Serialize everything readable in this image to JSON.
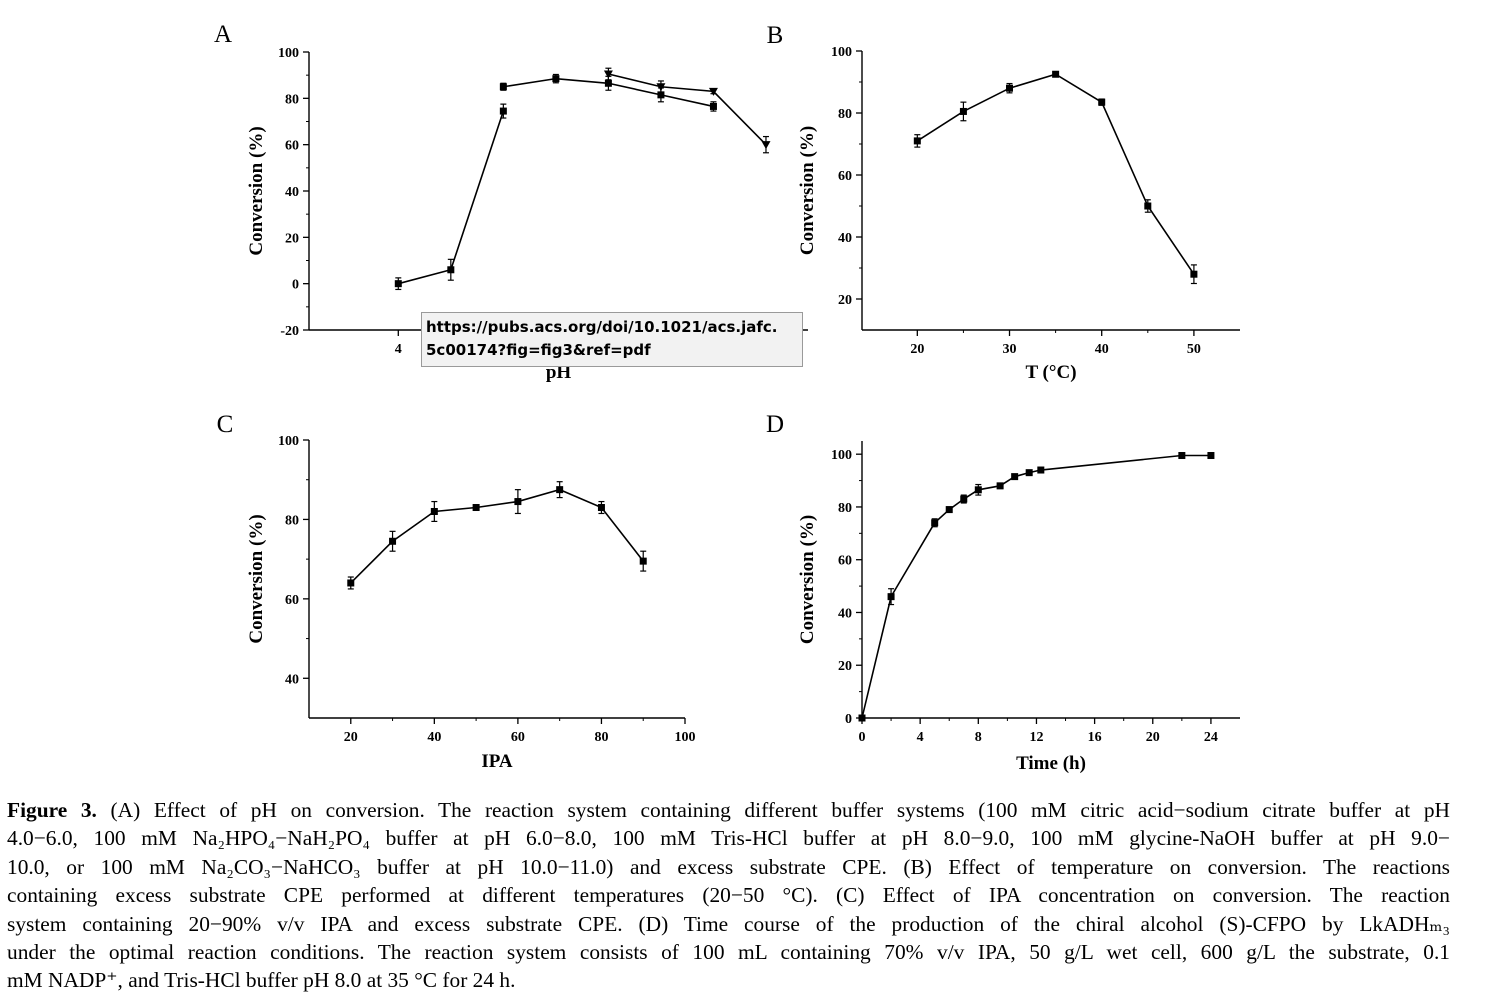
{
  "tooltip": {
    "line1": "https://pubs.acs.org/doi/10.1021/acs.jafc.",
    "line2": "5c00174?fig=fig3&ref=pdf"
  },
  "caption": {
    "line1_bold": "Figure 3.",
    "line1": " (A) Effect of pH on conversion. The reaction system containing different buffer systems (100 mM citric acid−sodium citrate buffer at pH",
    "line2": "4.0−6.0, 100 mM Na₂HPO₄−NaH₂PO₄ buffer at pH 6.0−8.0, 100 mM Tris-HCl buffer at pH 8.0−9.0, 100 mM glycine-NaOH buffer at pH 9.0−",
    "line3": "10.0, or 100 mM Na₂CO₃−NaHCO₃ buffer at pH 10.0−11.0) and excess substrate CPE. (B) Effect of temperature on conversion. The reactions",
    "line4": "containing excess substrate CPE performed at different temperatures (20−50 °C). (C) Effect of IPA concentration on conversion. The reaction",
    "line5": "system containing 20−90% v/v IPA and excess substrate CPE. (D) Time course of the production of the chiral alcohol (S)-CFPO by LkADHₘ₃",
    "line6": "under the optimal reaction conditions. The reaction system consists of 100 mL containing 70% v/v IPA, 50 g/L wet cell, 600 g/L the substrate, 0.1",
    "line7": "mM NADP⁺, and Tris-HCl buffer pH 8.0 at 35 °C for 24 h."
  },
  "chart_data": [
    {
      "type": "line",
      "panel": "A",
      "xlabel": "pH",
      "ylabel": "Conversion (%)",
      "xlim": [
        2.3,
        11.8
      ],
      "ylim": [
        -20,
        100
      ],
      "xticks": [
        4
      ],
      "yticks": [
        -20,
        0,
        20,
        40,
        60,
        80,
        100
      ],
      "series": [
        {
          "marker": "square",
          "x": [
            4,
            5,
            6
          ],
          "y": [
            0,
            6,
            74.5
          ],
          "err": [
            2.5,
            4.5,
            3
          ]
        },
        {
          "marker": "square",
          "x": [
            6,
            7,
            8,
            9,
            10
          ],
          "y": [
            85,
            88.5,
            86.5,
            81.5,
            76.5
          ],
          "err": [
            1.5,
            1.8,
            3,
            3,
            2
          ]
        },
        {
          "marker": "triangle",
          "x": [
            8,
            9,
            10,
            11
          ],
          "y": [
            90.5,
            85,
            83,
            60
          ],
          "err": [
            2.5,
            2.5,
            1,
            3.5
          ]
        }
      ]
    },
    {
      "type": "line",
      "panel": "B",
      "xlabel": "T (°C)",
      "ylabel": "Conversion (%)",
      "xlim": [
        14,
        55
      ],
      "ylim": [
        10,
        100
      ],
      "xticks": [
        20,
        30,
        40,
        50
      ],
      "yticks": [
        20,
        40,
        60,
        80,
        100
      ],
      "series": [
        {
          "marker": "square",
          "x": [
            20,
            25,
            30,
            35,
            40,
            45,
            50
          ],
          "y": [
            71,
            80.5,
            88,
            92.5,
            83.5,
            50,
            28
          ],
          "err": [
            2,
            3,
            1.5,
            0.8,
            1,
            2,
            3
          ]
        }
      ]
    },
    {
      "type": "line",
      "panel": "C",
      "xlabel": "IPA",
      "ylabel": "Conversion (%)",
      "xlim": [
        10,
        100
      ],
      "ylim": [
        30,
        100
      ],
      "xticks": [
        20,
        40,
        60,
        80,
        100
      ],
      "yticks": [
        40,
        60,
        80,
        100
      ],
      "series": [
        {
          "marker": "square",
          "x": [
            20,
            30,
            40,
            50,
            60,
            70,
            80,
            90
          ],
          "y": [
            64,
            74.5,
            82,
            83,
            84.5,
            87.5,
            83,
            69.5
          ],
          "err": [
            1.5,
            2.5,
            2.5,
            0.5,
            3,
            2,
            1.5,
            2.5
          ]
        }
      ]
    },
    {
      "type": "line",
      "panel": "D",
      "xlabel": "Time (h)",
      "ylabel": "Conversion (%)",
      "xlim": [
        0,
        26
      ],
      "ylim": [
        0,
        105
      ],
      "xticks": [
        0,
        4,
        8,
        12,
        16,
        20,
        24
      ],
      "yticks": [
        0,
        20,
        40,
        60,
        80,
        100
      ],
      "series": [
        {
          "marker": "square",
          "x": [
            0,
            2,
            5,
            6,
            7,
            8,
            9.5,
            10.5,
            11.5,
            12.3,
            22,
            24
          ],
          "y": [
            0,
            46,
            74,
            79,
            83,
            86.5,
            88,
            91.5,
            93,
            94,
            99.5,
            99.5
          ],
          "err": [
            0,
            3,
            1.5,
            1,
            1.5,
            2,
            1,
            0.5,
            0.5,
            0.5,
            0.5,
            0.5
          ]
        }
      ]
    }
  ]
}
